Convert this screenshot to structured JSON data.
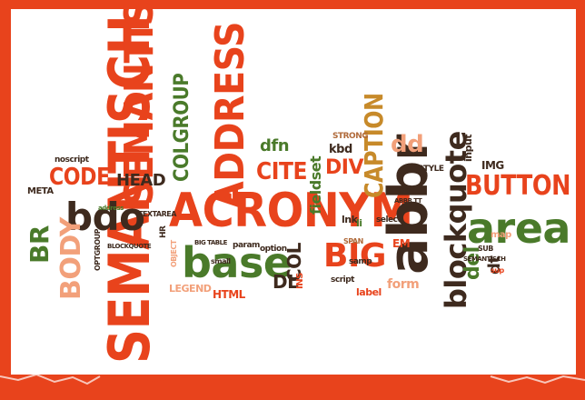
{
  "words": {
    "semantisch_big": "SEMANTISCH",
    "semantisch_top": "SEMANTISCH",
    "address": "ADDRESS",
    "acronym": "ACRONYM",
    "abbr": "abbr",
    "base": "base",
    "area": "area",
    "bdo": "bdo",
    "blockquote": "blockquote",
    "button": "BUTTON",
    "big": "BIG",
    "body": "BODY",
    "code": "CODE",
    "cite": "CITE",
    "caption": "CAPTION",
    "colgroup": "COLGROUP",
    "head": "HEAD",
    "div": "DIV",
    "col": "COL",
    "dl": "DL",
    "br": "BR",
    "dd": "dd",
    "dfn": "dfn",
    "del": "del",
    "dt": "dt",
    "fieldset": "fieldset",
    "form": "form",
    "html": "HTML",
    "legend": "LEGEND",
    "img": "IMG",
    "input": "input",
    "em": "EM",
    "kbd": "kbd",
    "strong": "STRONG",
    "style": "STYLE",
    "map": "map",
    "label": "label",
    "textarea": "TEXTAREA",
    "noscript": "noscript",
    "meta": "META",
    "optgroup": "OPTGROUP",
    "option": "option",
    "param": "param",
    "object": "OBJECT",
    "ins": "INS",
    "lnk": "lnk",
    "hr": "HR",
    "li": "li",
    "dd2": "dd",
    "span": "SPAN",
    "sup": "sup",
    "sub": "SUB",
    "script": "script",
    "samp": "samp",
    "select": "select",
    "pre": "pre",
    "table": "BIG TABLE",
    "small": "small",
    "abbrtt": "ABBR TT",
    "blockquote_small": "BLOCKQUOTE",
    "semantisch_small": "SEMANTISCH",
    "address_small": "address"
  }
}
